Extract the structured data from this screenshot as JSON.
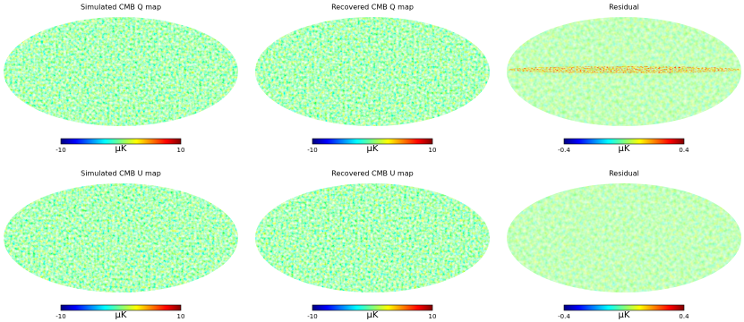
{
  "panels": [
    {
      "title": "Simulated CMB Q map",
      "colorbar": {
        "min": -10,
        "max": 10,
        "unit": "μK"
      }
    },
    {
      "title": "Recovered CMB Q map",
      "colorbar": {
        "min": -10,
        "max": 10,
        "unit": "μK"
      }
    },
    {
      "title": "Residual",
      "colorbar": {
        "min": -0.4,
        "max": 0.4,
        "unit": "μK"
      }
    },
    {
      "title": "Simulated CMB U map",
      "colorbar": {
        "min": -10,
        "max": 10,
        "unit": "μK"
      }
    },
    {
      "title": "Recovered CMB U map",
      "colorbar": {
        "min": -10,
        "max": 10,
        "unit": "μK"
      }
    },
    {
      "title": "Residual",
      "colorbar": {
        "min": -0.4,
        "max": 0.4,
        "unit": "μK"
      }
    }
  ]
}
